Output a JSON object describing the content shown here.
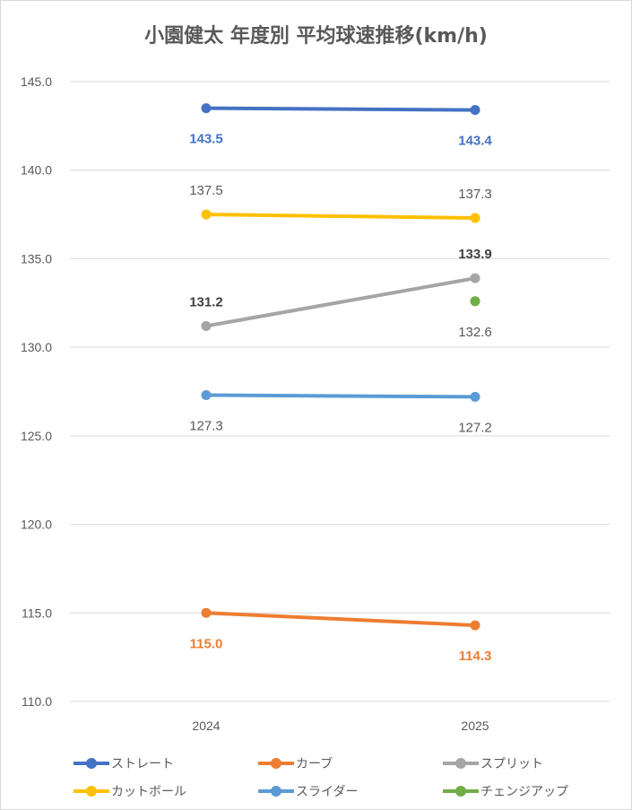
{
  "title": "小園健太 年度別 平均球速推移(km/h)",
  "chart_data": {
    "type": "line",
    "title": "小園健太 年度別 平均球速推移(km/h)",
    "xlabel": "",
    "ylabel": "",
    "categories": [
      "2024",
      "2025"
    ],
    "ylim": [
      110,
      145
    ],
    "yticks": [
      "110.0",
      "115.0",
      "120.0",
      "125.0",
      "130.0",
      "135.0",
      "140.0",
      "145.0"
    ],
    "grid": true,
    "legend_position": "bottom",
    "series": [
      {
        "name": "ストレート",
        "color": "#4472c4",
        "values": [
          143.5,
          143.4
        ],
        "labels": [
          "143.5",
          "143.4"
        ],
        "label_pos": "below",
        "bold": true
      },
      {
        "name": "カーブ",
        "color": "#ed7d31",
        "values": [
          115.0,
          114.3
        ],
        "labels": [
          "115.0",
          "114.3"
        ],
        "label_pos": "below",
        "bold": true
      },
      {
        "name": "スプリット",
        "color": "#a5a5a5",
        "values": [
          131.2,
          133.9
        ],
        "labels": [
          "131.2",
          "133.9"
        ],
        "label_pos": "above",
        "bold": true
      },
      {
        "name": "カットボール",
        "color": "#ffc000",
        "values": [
          137.5,
          137.3
        ],
        "labels": [
          "137.5",
          "137.3"
        ],
        "label_pos": "above",
        "bold": false
      },
      {
        "name": "スライダー",
        "color": "#5b9bd5",
        "values": [
          127.3,
          127.2
        ],
        "labels": [
          "127.3",
          "127.2"
        ],
        "label_pos": "below",
        "bold": false
      },
      {
        "name": "チェンジアップ",
        "color": "#70ad47",
        "values": [
          null,
          132.6
        ],
        "labels": [
          null,
          "132.6"
        ],
        "label_pos": "below",
        "bold": false
      }
    ]
  }
}
